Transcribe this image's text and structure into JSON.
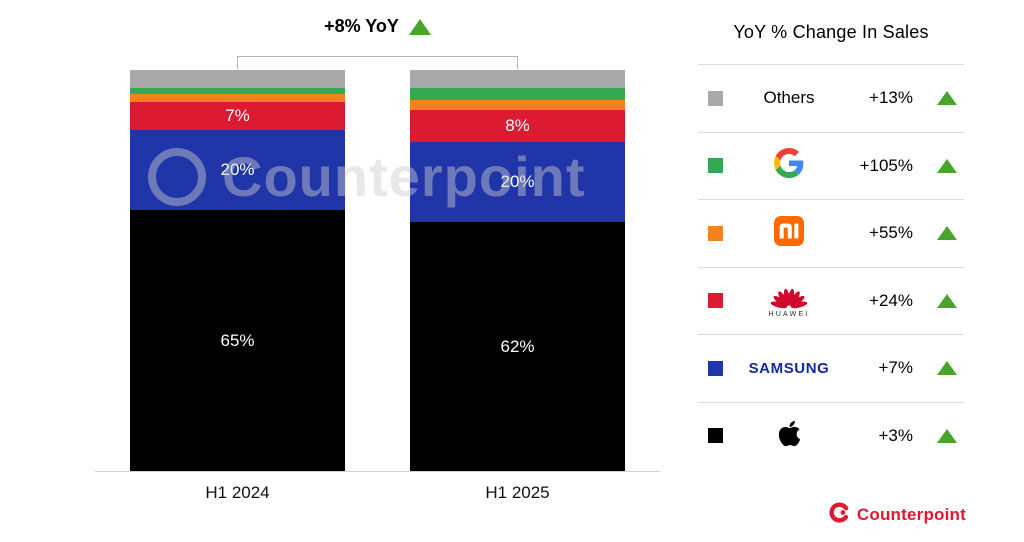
{
  "watermark": "Counterpoint",
  "colors": {
    "up_triangle": "#4aa32b",
    "brand_red": "#e3172f"
  },
  "chart_data": {
    "type": "bar",
    "stacked": true,
    "title": "",
    "annotation": "+8% YoY",
    "categories": [
      "H1 2024",
      "H1 2025"
    ],
    "unit": "%",
    "ylim": [
      0,
      100
    ],
    "series": [
      {
        "name": "Apple",
        "color": "#000000",
        "values": [
          65,
          62
        ],
        "labels": [
          "65%",
          "62%"
        ],
        "show_label": true
      },
      {
        "name": "Samsung",
        "color": "#1f35a8",
        "values": [
          20,
          20
        ],
        "labels": [
          "20%",
          "20%"
        ],
        "show_label": true
      },
      {
        "name": "Huawei",
        "color": "#dc1a32",
        "values": [
          7,
          8
        ],
        "labels": [
          "7%",
          "8%"
        ],
        "show_label": true
      },
      {
        "name": "Xiaomi",
        "color": "#f5821f",
        "values": [
          2,
          2.5
        ],
        "show_label": false
      },
      {
        "name": "Google",
        "color": "#34a853",
        "values": [
          1.5,
          3
        ],
        "show_label": false
      },
      {
        "name": "Others",
        "color": "#a9a9a9",
        "values": [
          4.5,
          4.5
        ],
        "show_label": false
      }
    ]
  },
  "legend": {
    "header": "YoY % Change In Sales",
    "rows": [
      {
        "brand": "Others",
        "change": "+13%",
        "color": "#a9a9a9"
      },
      {
        "brand": "Google",
        "change": "+105%",
        "color": "#34a853"
      },
      {
        "brand": "Xiaomi",
        "change": "+55%",
        "color": "#f5821f"
      },
      {
        "brand": "Huawei",
        "change": "+24%",
        "color": "#dc1a32",
        "logo_text": "HUAWEI"
      },
      {
        "brand": "Samsung",
        "change": "+7%",
        "color": "#1f35a8",
        "logo_text": "SAMSUNG"
      },
      {
        "brand": "Apple",
        "change": "+3%",
        "color": "#000000"
      }
    ]
  },
  "footer": {
    "brand": "Counterpoint"
  }
}
